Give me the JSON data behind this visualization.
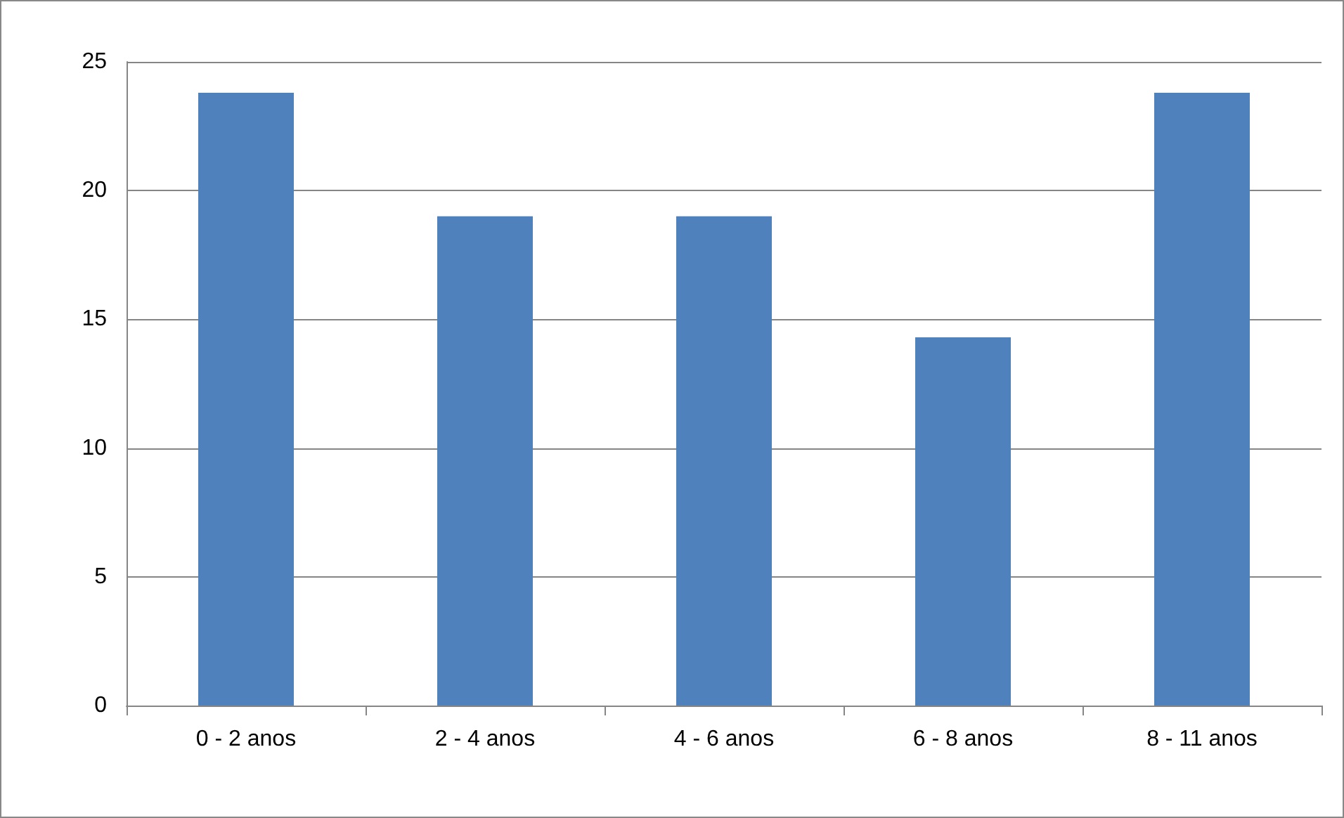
{
  "chart_data": {
    "type": "bar",
    "categories": [
      "0 - 2 anos",
      "2 - 4 anos",
      "4 - 6 anos",
      "6 - 8 anos",
      "8 - 11 anos"
    ],
    "values": [
      23.8,
      19,
      19,
      14.3,
      23.8
    ],
    "color": "#4f81bd",
    "ylim": [
      0,
      25
    ],
    "yticks": [
      0,
      5,
      10,
      15,
      20,
      25
    ],
    "grid": "y"
  }
}
